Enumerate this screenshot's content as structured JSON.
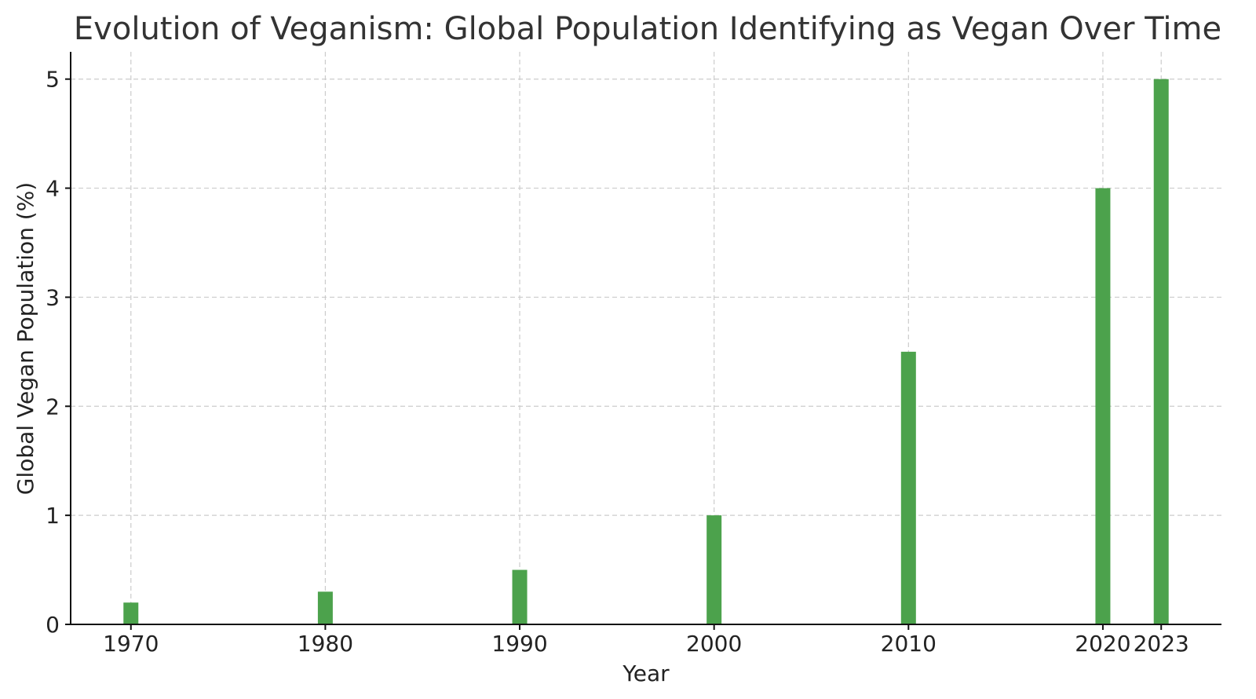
{
  "chart_data": {
    "type": "bar",
    "title": "Evolution of Veganism: Global Population Identifying as Vegan Over Time",
    "xlabel": "Year",
    "ylabel": "Global Vegan Population (%)",
    "x": [
      1970,
      1980,
      1990,
      2000,
      2010,
      2020,
      2023
    ],
    "x_tick_labels": [
      "1970",
      "1980",
      "1990",
      "2000",
      "2010",
      "2020",
      "2023"
    ],
    "values": [
      0.2,
      0.3,
      0.5,
      1.0,
      2.5,
      4.0,
      5.0
    ],
    "xlim": [
      1966.9,
      2026.1
    ],
    "ylim": [
      0,
      5.25
    ],
    "y_ticks": [
      0,
      1,
      2,
      3,
      4,
      5
    ],
    "y_tick_labels": [
      "0",
      "1",
      "2",
      "3",
      "4",
      "5"
    ],
    "bar_color": "#4ca24c",
    "grid": true,
    "legend": "none"
  }
}
